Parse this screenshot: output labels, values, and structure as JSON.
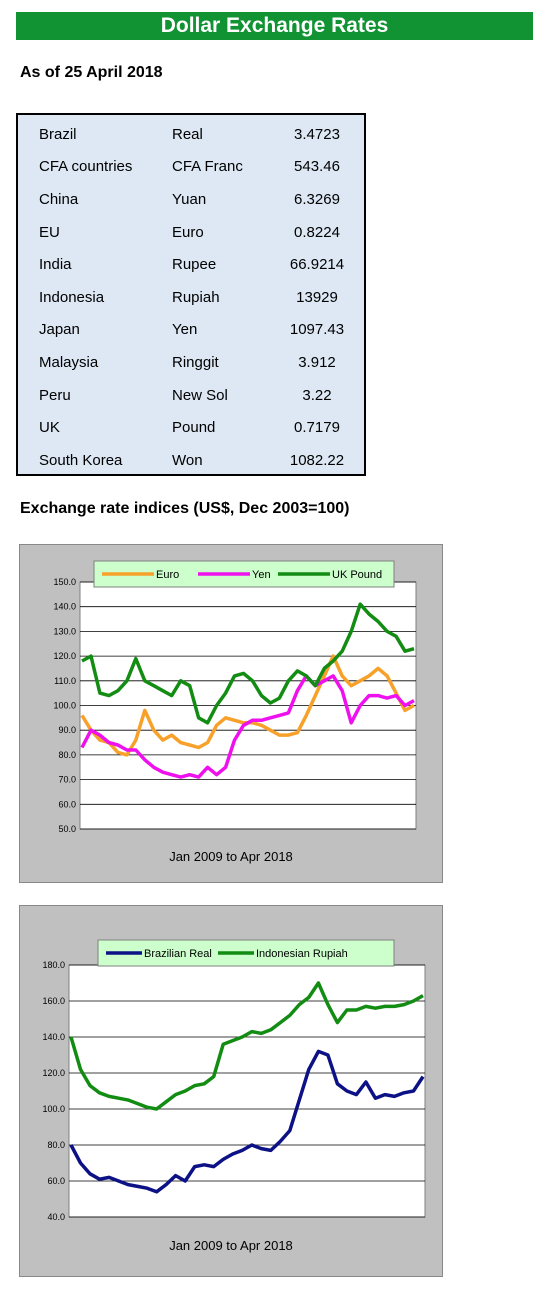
{
  "header": {
    "title": "Dollar Exchange Rates",
    "as_of": "As of 25 April 2018"
  },
  "rates": [
    {
      "country": "Brazil",
      "currency": "Real",
      "rate": "3.4723"
    },
    {
      "country": "CFA countries",
      "currency": "CFA Franc",
      "rate": "543.46"
    },
    {
      "country": "China",
      "currency": "Yuan",
      "rate": "6.3269"
    },
    {
      "country": "EU",
      "currency": "Euro",
      "rate": "0.8224"
    },
    {
      "country": "India",
      "currency": "Rupee",
      "rate": "66.9214"
    },
    {
      "country": "Indonesia",
      "currency": "Rupiah",
      "rate": "13929"
    },
    {
      "country": "Japan",
      "currency": "Yen",
      "rate": "1097.43"
    },
    {
      "country": "Malaysia",
      "currency": "Ringgit",
      "rate": "3.912"
    },
    {
      "country": "Peru",
      "currency": "New Sol",
      "rate": "3.22"
    },
    {
      "country": "UK",
      "currency": "Pound",
      "rate": "0.7179"
    },
    {
      "country": "South Korea",
      "currency": "Won",
      "rate": "1082.22"
    }
  ],
  "section_title": "Exchange rate indices (US$, Dec 2003=100)",
  "chart_data": [
    {
      "type": "line",
      "xlabel": "Jan 2009  to Apr 2018",
      "ylim": [
        50,
        150
      ],
      "yticks": [
        "50.0",
        "60.0",
        "70.0",
        "80.0",
        "90.0",
        "100.0",
        "110.0",
        "120.0",
        "130.0",
        "140.0",
        "150.0"
      ],
      "grid": true,
      "legend": "top",
      "x_range": [
        "Jan 2009",
        "Apr 2018"
      ],
      "series": [
        {
          "name": "Euro",
          "color": "#f7a12a",
          "values": [
            96,
            90,
            86,
            85,
            81,
            80,
            86,
            98,
            90,
            86,
            88,
            85,
            84,
            83,
            85,
            92,
            95,
            94,
            93,
            93,
            92,
            90,
            88,
            88,
            89,
            96,
            104,
            112,
            120,
            112,
            108,
            110,
            112,
            115,
            112,
            105,
            98,
            100
          ]
        },
        {
          "name": "Yen",
          "color": "#ee11ee",
          "values": [
            83,
            90,
            88,
            85,
            84,
            82,
            82,
            78,
            75,
            73,
            72,
            71,
            72,
            71,
            75,
            72,
            75,
            86,
            92,
            94,
            94,
            95,
            96,
            97,
            106,
            112,
            108,
            110,
            112,
            106,
            93,
            100,
            104,
            104,
            103,
            104,
            100,
            102
          ]
        },
        {
          "name": "UK Pound",
          "color": "#138c13",
          "values": [
            118,
            120,
            105,
            104,
            106,
            110,
            119,
            110,
            108,
            106,
            104,
            110,
            108,
            95,
            93,
            100,
            105,
            112,
            113,
            110,
            104,
            101,
            103,
            110,
            114,
            112,
            108,
            115,
            118,
            122,
            130,
            141,
            137,
            134,
            130,
            128,
            122,
            123
          ]
        }
      ]
    },
    {
      "type": "line",
      "xlabel": "Jan 2009  to Apr 2018",
      "ylim": [
        40,
        180
      ],
      "yticks": [
        "40.0",
        "60.0",
        "80.0",
        "100.0",
        "120.0",
        "140.0",
        "160.0",
        "180.0"
      ],
      "grid": true,
      "legend": "top",
      "x_range": [
        "Jan 2009",
        "Apr 2018"
      ],
      "series": [
        {
          "name": "Brazilian Real",
          "color": "#0c1285",
          "values": [
            80,
            70,
            64,
            61,
            62,
            60,
            58,
            57,
            56,
            54,
            58,
            63,
            60,
            68,
            69,
            68,
            72,
            75,
            77,
            80,
            78,
            77,
            82,
            88,
            105,
            122,
            132,
            130,
            114,
            110,
            108,
            115,
            106,
            108,
            107,
            109,
            110,
            118
          ]
        },
        {
          "name": "Indonesian Rupiah",
          "color": "#138c13",
          "values": [
            140,
            122,
            113,
            109,
            107,
            106,
            105,
            103,
            101,
            100,
            104,
            108,
            110,
            113,
            114,
            118,
            136,
            138,
            140,
            143,
            142,
            144,
            148,
            152,
            158,
            162,
            170,
            158,
            148,
            155,
            155,
            157,
            156,
            157,
            157,
            158,
            160,
            163
          ]
        }
      ]
    }
  ]
}
